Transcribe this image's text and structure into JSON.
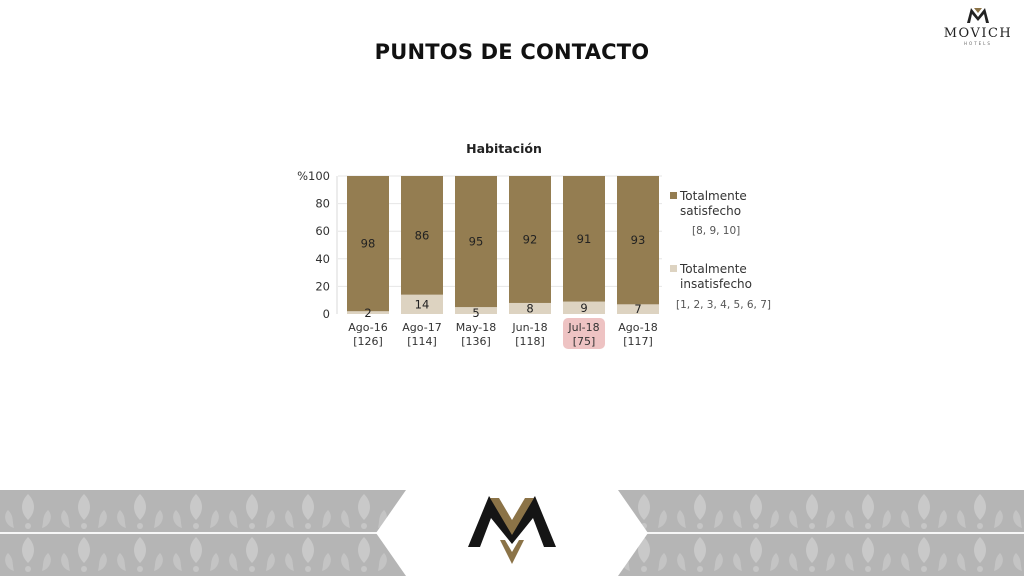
{
  "page": {
    "title": "PUNTOS DE CONTACTO"
  },
  "brand": {
    "name": "MOVICH",
    "subtitle": "HOTELS"
  },
  "chart_data": {
    "type": "bar",
    "stacked": true,
    "title": "Habitación",
    "y_unit_label": "%",
    "categories": [
      "Ago-16",
      "Ago-17",
      "May-18",
      "Jun-18",
      "Jul-18",
      "Ago-18"
    ],
    "category_counts": [
      "[126]",
      "[114]",
      "[136]",
      "[118]",
      "[75]",
      "[117]"
    ],
    "highlighted_category": "Jul-18",
    "ylim": [
      0,
      100
    ],
    "yticks": [
      0,
      20,
      40,
      60,
      80,
      100
    ],
    "series": [
      {
        "name": "Totalmente insatisfecho",
        "range_label": "[1, 2, 3, 4, 5, 6, 7]",
        "color": "#ddd3c1",
        "values": [
          2,
          14,
          5,
          8,
          9,
          7
        ]
      },
      {
        "name": "Totalmente satisfecho",
        "range_label": "[8, 9, 10]",
        "color": "#947d51",
        "values": [
          98,
          86,
          95,
          92,
          91,
          93
        ]
      }
    ],
    "legend_position": "right",
    "highlight_color": "#eec3c3"
  },
  "colors": {
    "footer_gray": "#b3b3b3",
    "logo_dark": "#141414",
    "logo_gold": "#8b7347"
  }
}
